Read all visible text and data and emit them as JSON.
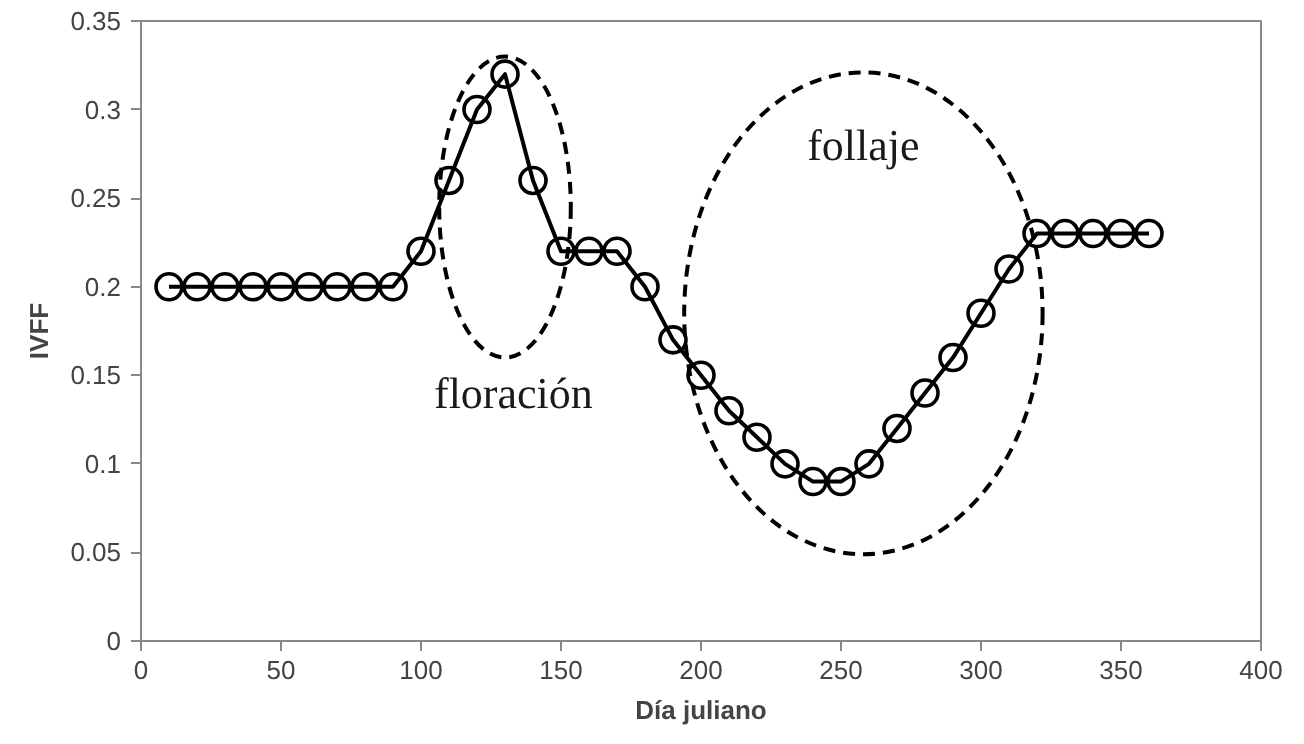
{
  "chart_data": {
    "type": "line",
    "xlabel": "Día juliano",
    "ylabel": "IVFF",
    "x": [
      10,
      20,
      30,
      40,
      50,
      60,
      70,
      80,
      90,
      100,
      110,
      120,
      130,
      140,
      150,
      160,
      170,
      180,
      190,
      200,
      210,
      220,
      230,
      240,
      250,
      260,
      270,
      280,
      290,
      300,
      310,
      320,
      330,
      340,
      350,
      360
    ],
    "series": [
      {
        "color": "#000000",
        "values": [
          0.2,
          0.2,
          0.2,
          0.2,
          0.2,
          0.2,
          0.2,
          0.2,
          0.2,
          0.22,
          0.26,
          0.3,
          0.32,
          0.26,
          0.22,
          0.22,
          0.22,
          0.2,
          0.17,
          0.15,
          0.13,
          0.115,
          0.1,
          0.09,
          0.09,
          0.1,
          0.12,
          0.14,
          0.16,
          0.185,
          0.21,
          0.23,
          0.23,
          0.23,
          0.23,
          0.23
        ]
      }
    ],
    "xlim": [
      0,
      400
    ],
    "xticks": [
      0,
      50,
      100,
      150,
      200,
      250,
      300,
      350,
      400
    ],
    "ylim": [
      0,
      0.35
    ],
    "yticks": [
      0,
      0.05,
      0.1,
      0.15,
      0.2,
      0.25,
      0.3,
      0.35
    ],
    "marker": "circle",
    "line_style": "solid",
    "grid": false,
    "annotations": [
      "floración",
      "follaje"
    ]
  }
}
